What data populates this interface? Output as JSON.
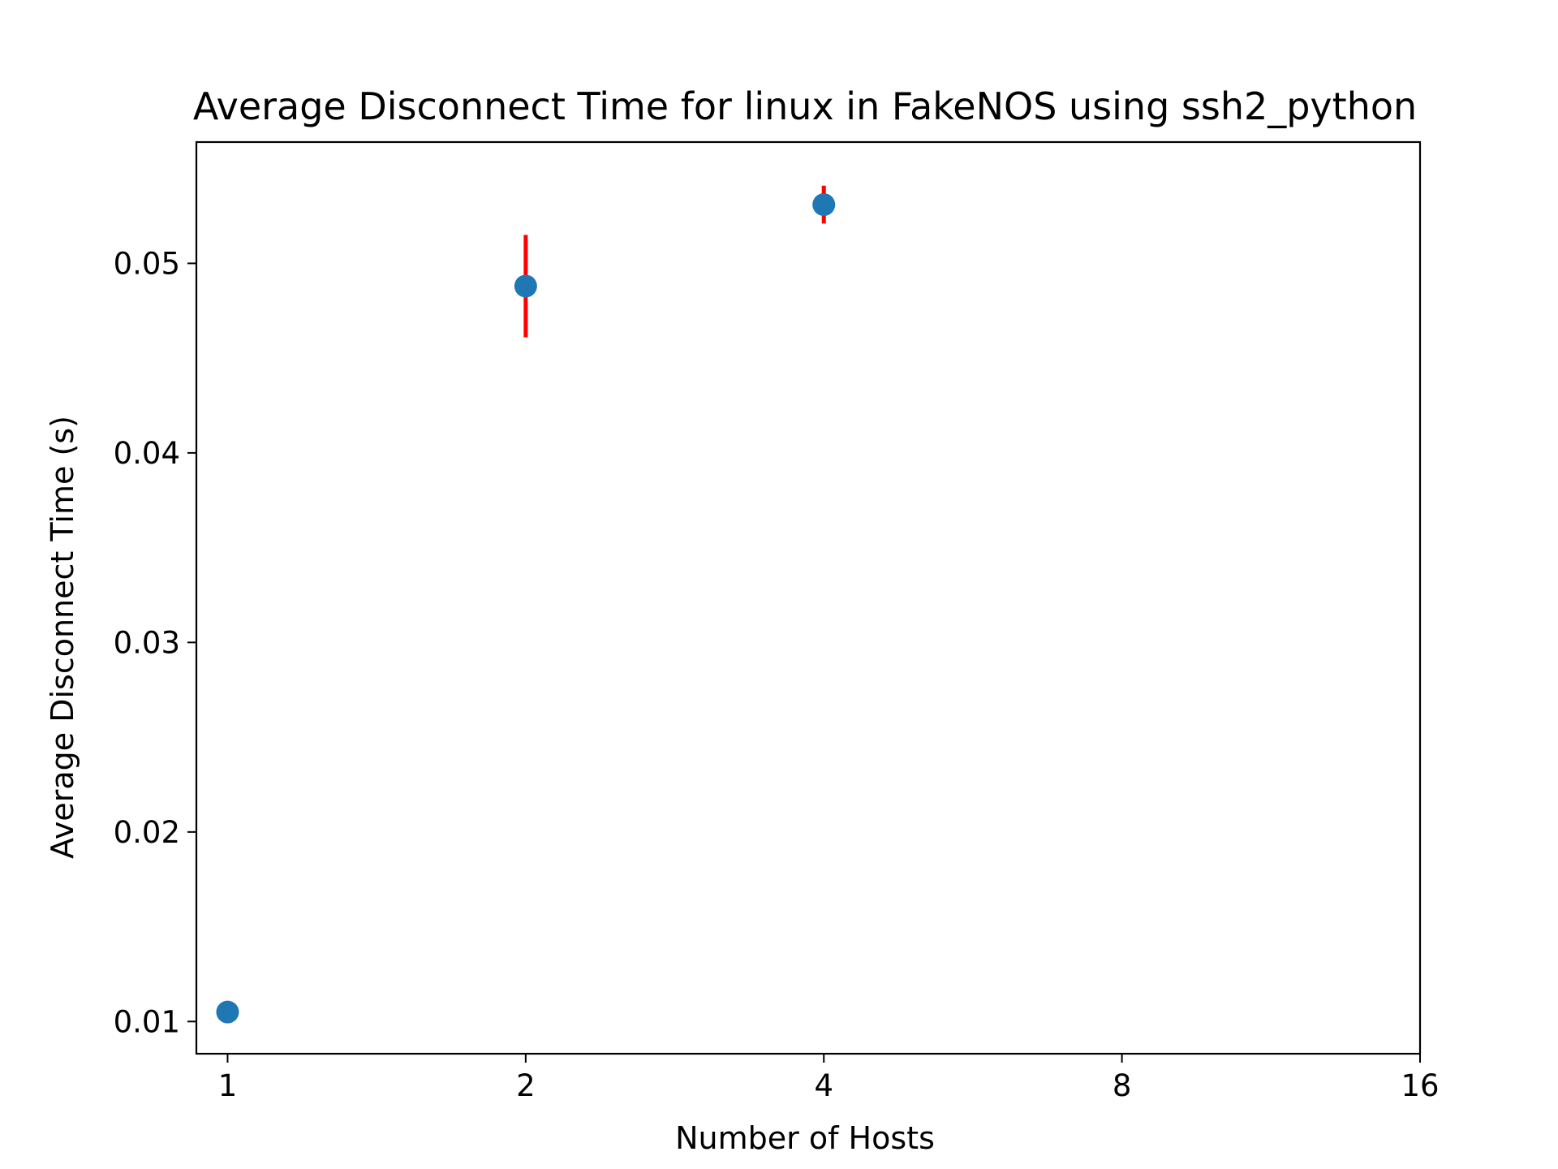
{
  "chart_data": {
    "type": "scatter",
    "title": "Average Disconnect Time for linux in FakeNOS using ssh2_python",
    "xlabel": "Number of Hosts",
    "ylabel": "Average Disconnect Time (s)",
    "x_scale": "log2",
    "x_ticks": [
      1,
      2,
      4,
      8,
      16
    ],
    "x_tick_labels": [
      "1",
      "2",
      "4",
      "8",
      "16"
    ],
    "xlim": [
      0.93,
      16
    ],
    "y_ticks": [
      0.01,
      0.02,
      0.03,
      0.04,
      0.05
    ],
    "y_tick_labels": [
      "0.01",
      "0.02",
      "0.03",
      "0.04",
      "0.05"
    ],
    "ylim": [
      0.0083,
      0.0564
    ],
    "grid": false,
    "legend": "none",
    "marker_color": "#1f77b4",
    "errorbar_color": "#ff0000",
    "points": [
      {
        "x": 1,
        "y": 0.0105,
        "err": 0
      },
      {
        "x": 2,
        "y": 0.0488,
        "err": 0.0027
      },
      {
        "x": 4,
        "y": 0.0531,
        "err": 0.001
      }
    ]
  }
}
